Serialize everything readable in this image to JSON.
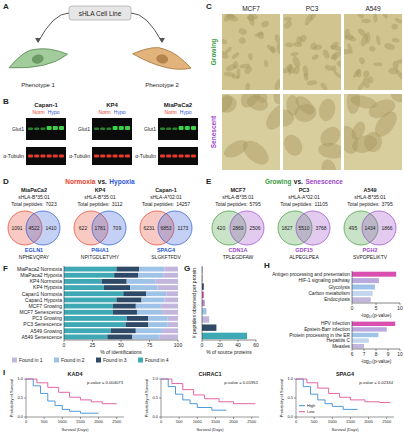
{
  "panel_labels": [
    "A",
    "B",
    "C",
    "D",
    "E",
    "F",
    "G",
    "H",
    "I"
  ],
  "diagram": {
    "cell_line": "sHLA Cell Line",
    "phenotypes": [
      "Phenotype 1",
      "Phenotype 2"
    ]
  },
  "blots": {
    "legend": [
      {
        "name": "Norm",
        "color": "#e8402a"
      },
      {
        "name": "Hypo",
        "color": "#2a56d6"
      }
    ],
    "lines": [
      "Capan-1",
      "KP4",
      "MiaPaCa2"
    ],
    "bands": [
      "Glut1",
      "α-Tubulin"
    ]
  },
  "micrographs": {
    "columns": [
      "MCF7",
      "PC3",
      "A549"
    ],
    "rows": [
      {
        "name": "Growing",
        "color": "#3a9a3a"
      },
      {
        "name": "Senescent",
        "color": "#9a46c8"
      }
    ]
  },
  "venn_d": {
    "title": [
      {
        "text": "Normoxia",
        "color": "#e8402a"
      },
      {
        "text": "vs.",
        "color": "#222222"
      },
      {
        "text": "Hypoxia",
        "color": "#2a56d6"
      }
    ],
    "total_label": "Total peptides:",
    "items": [
      {
        "sample": "MiaPaCa2",
        "allele": "sHLA-B*35:01",
        "total": 7023,
        "counts": [
          1091,
          4522,
          1410
        ],
        "gene": "EGLN1",
        "peptide": "NPHEVQPAY",
        "color": "#2a56d6"
      },
      {
        "sample": "KP4",
        "allele": "sHLA-B*35:01",
        "total": 3112,
        "counts": [
          622,
          1781,
          709
        ],
        "gene": "P4HA1",
        "peptide": "NPITGDLETVHY",
        "color": "#2a56d6"
      },
      {
        "sample": "Capan-1",
        "allele": "sHLA-A*02:01",
        "total": 14257,
        "counts": [
          6231,
          6853,
          1173
        ],
        "gene": "SPAG4",
        "peptide": "SLGKFTFDV",
        "color": "#2a56d6"
      }
    ]
  },
  "venn_e": {
    "title": [
      {
        "text": "Growing",
        "color": "#3a9a3a"
      },
      {
        "text": "vs.",
        "color": "#222222"
      },
      {
        "text": "Senescence",
        "color": "#9a46c8"
      }
    ],
    "total_label": "Total peptides:",
    "items": [
      {
        "sample": "MCF7",
        "allele": "sHLA-B*35:01",
        "total": 5795,
        "counts": [
          420,
          2869,
          2506
        ],
        "gene": "CDN1A",
        "peptide": "TPLEGDFAW",
        "color": "#9a46c8"
      },
      {
        "sample": "PC3",
        "allele": "sHLA-A*02:01",
        "total": 11105,
        "counts": [
          1827,
          5510,
          3768
        ],
        "gene": "GDF15",
        "peptide": "ALPEGLPEA",
        "color": "#9a46c8"
      },
      {
        "sample": "A549",
        "allele": "sHLA-B*35:01",
        "total": 3795,
        "counts": [
          495,
          1434,
          1866
        ],
        "gene": "PGH2",
        "peptide": "SVPDPELIKTV",
        "color": "#9a46c8"
      }
    ]
  },
  "chart_data": [
    {
      "type": "bar",
      "orientation": "horizontal",
      "stacked": true,
      "legend": "bottom",
      "categories": [
        "MiaPaca2 Normoxia",
        "MiaPaca2 Hypoxia",
        "KP4 Normoxia",
        "KP4 Hypoxia",
        "Capan1 Normoxia",
        "Capan1 Hypoxia",
        "MCF7 Growing",
        "MCF7 Senescence",
        "PC3 Growing",
        "PC3 Senescence",
        "A549 Growing",
        "A549 Senescence"
      ],
      "series": [
        {
          "name": "Found in 1",
          "color": "#c2b6dd",
          "values": [
            12,
            13,
            20,
            18,
            10,
            12,
            15,
            14,
            9,
            9,
            14,
            16
          ]
        },
        {
          "name": "Found in 2",
          "color": "#9fc3e7",
          "values": [
            22,
            22,
            25,
            24,
            18,
            20,
            22,
            22,
            17,
            17,
            23,
            24
          ]
        },
        {
          "name": "Found in 3",
          "color": "#2e4a66",
          "values": [
            20,
            21,
            22,
            23,
            20,
            22,
            20,
            21,
            19,
            20,
            22,
            22
          ]
        },
        {
          "name": "Found in 4",
          "color": "#3fa8b5",
          "values": [
            46,
            44,
            33,
            35,
            52,
            46,
            43,
            43,
            55,
            54,
            41,
            38
          ]
        }
      ],
      "x_label": "% of identifications",
      "xlim": [
        0,
        100
      ],
      "xticks": [
        0,
        25,
        50,
        75,
        100
      ]
    },
    {
      "type": "bar",
      "orientation": "horizontal",
      "tick_labels": "x",
      "categories": [
        null,
        null,
        null,
        null,
        null,
        null,
        null,
        null,
        null
      ],
      "values": [
        1,
        1,
        2,
        2,
        3,
        5,
        8,
        16,
        50
      ],
      "colors": [
        "#c2b6dd",
        "#9fc3e7",
        "#2e4a66",
        "#e04fa8",
        "#b585d0",
        "#9fc3e7",
        "#c2b6dd",
        "#2e4a66",
        "#3fa8b5"
      ],
      "x_label": "% of source proteins",
      "y_label": "# peptides observed per protein",
      "xlim": [
        0,
        60
      ],
      "xticks": [
        0,
        20,
        40,
        60
      ]
    },
    {
      "type": "bar",
      "orientation": "horizontal",
      "categories": [
        "Antigen processing and presentation",
        "HIF-1 signaling pathway",
        "Glycolysis",
        "Carbon metabolism",
        "Endocytosis"
      ],
      "values": [
        9.2,
        5.6,
        4.8,
        4.3,
        3.9
      ],
      "colors": [
        "#d94fb0",
        "#b9a9dc",
        "#9fc3e7",
        "#c2d6ee",
        "#c2b6dd"
      ],
      "x_label": "-log₁₀(p-value)",
      "xlim": [
        0,
        10
      ],
      "xticks": [
        0,
        5,
        10
      ]
    },
    {
      "type": "bar",
      "orientation": "horizontal",
      "categories": [
        "HPV infection",
        "Epstein-Barr infection",
        "Protein processing in the ER",
        "Hepatitis C",
        "Measles"
      ],
      "values": [
        9.6,
        8.9,
        8.2,
        7.4,
        7.0
      ],
      "colors": [
        "#d94fb0",
        "#b9a9dc",
        "#9fc3e7",
        "#c2d6ee",
        "#c2b6dd"
      ],
      "x_label": "-log₁₀(p-value)",
      "xlim": [
        6,
        10
      ],
      "xticks": [
        6,
        7,
        8,
        9,
        10
      ]
    },
    {
      "type": "line",
      "line_style": "step",
      "title": "KAD4",
      "annotation": "p-value = 0.004073",
      "x_label": "Survival (Days)",
      "y_label": "Probability of Survival",
      "xlim": [
        0,
        2700
      ],
      "xticks": [
        0,
        500,
        1000,
        1500,
        2000,
        2500
      ],
      "ylim": [
        0,
        1
      ],
      "yticks": [
        {
          "value": 0,
          "label": "0.0"
        },
        {
          "value": 0.5,
          "label": "0.5"
        },
        {
          "value": 1,
          "label": "1.0"
        }
      ],
      "series": [
        {
          "name": "High",
          "color": "#3a8fd6",
          "x": [
            0,
            200,
            400,
            600,
            800,
            1000,
            1200,
            1500,
            2000
          ],
          "values": [
            1,
            0.82,
            0.62,
            0.42,
            0.3,
            0.2,
            0.15,
            0.1,
            0.1
          ]
        },
        {
          "name": "Low",
          "color": "#e0559a",
          "x": [
            0,
            300,
            600,
            900,
            1200,
            1500,
            1800,
            2100,
            2500
          ],
          "values": [
            1,
            0.9,
            0.78,
            0.65,
            0.52,
            0.45,
            0.4,
            0.35,
            0.35
          ]
        }
      ]
    },
    {
      "type": "line",
      "line_style": "step",
      "title": "CHRAC1",
      "annotation": "p-value = 0.01951",
      "x_label": "Survival (Days)",
      "y_label": "Probability of Survival",
      "xlim": [
        0,
        2700
      ],
      "xticks": [
        0,
        500,
        1000,
        1500,
        2000,
        2500
      ],
      "ylim": [
        0,
        1
      ],
      "yticks": [
        {
          "value": 0,
          "label": "0.0"
        },
        {
          "value": 0.5,
          "label": "0.5"
        },
        {
          "value": 1,
          "label": "1.0"
        }
      ],
      "series": [
        {
          "name": "High",
          "color": "#3a8fd6",
          "x": [
            0,
            200,
            400,
            600,
            800,
            1000,
            1400,
            1800
          ],
          "values": [
            1,
            0.8,
            0.6,
            0.45,
            0.35,
            0.25,
            0.18,
            0.18
          ]
        },
        {
          "name": "Low",
          "color": "#e0559a",
          "x": [
            0,
            300,
            600,
            900,
            1200,
            1600,
            2000,
            2600
          ],
          "values": [
            1,
            0.88,
            0.72,
            0.58,
            0.48,
            0.4,
            0.35,
            0.35
          ]
        }
      ]
    },
    {
      "type": "line",
      "line_style": "step",
      "title": "SPAG4",
      "annotation": "p-value = 0.02334",
      "x_label": "Survival (Days)",
      "y_label": "Probability of Survival",
      "legend": "lower left",
      "xlim": [
        0,
        2700
      ],
      "xticks": [
        0,
        500,
        1000,
        1500,
        2000,
        2500
      ],
      "ylim": [
        0,
        1
      ],
      "yticks": [
        {
          "value": 0,
          "label": "0.0"
        },
        {
          "value": 0.5,
          "label": "0.5"
        },
        {
          "value": 1,
          "label": "1.0"
        }
      ],
      "series": [
        {
          "name": "High",
          "color": "#3a8fd6",
          "x": [
            0,
            200,
            400,
            600,
            800,
            1000,
            1300,
            1700
          ],
          "values": [
            1,
            0.8,
            0.6,
            0.45,
            0.35,
            0.28,
            0.2,
            0.2
          ]
        },
        {
          "name": "Low",
          "color": "#e0559a",
          "x": [
            0,
            300,
            600,
            900,
            1200,
            1500,
            1900,
            2300,
            2600
          ],
          "values": [
            1,
            0.9,
            0.76,
            0.62,
            0.52,
            0.45,
            0.4,
            0.38,
            0.38
          ]
        }
      ]
    }
  ]
}
